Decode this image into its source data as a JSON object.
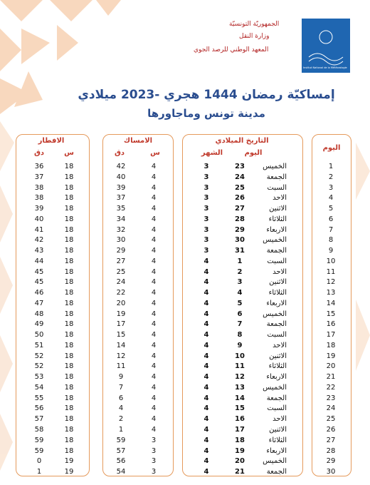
{
  "header": {
    "country": "الجمهوريّة التونسيّة",
    "ministry": "وزارة النقل",
    "institute": "المعهد الوطني للرصد الجوي",
    "logo_text": "Institut National de la Météorologie"
  },
  "title": "إمساكيّة رمضان 1444 هجري -2023 ميلادي",
  "subtitle": "مدينة تونس وماجاورها",
  "table": {
    "group_headers": {
      "day": "اليوم",
      "date": "التاريخ الميلادي",
      "imsak": "الامساك",
      "iftar": "الافطار"
    },
    "sub_headers": {
      "date_day": "اليوم",
      "date_month": "الشهر",
      "imsak_h": "س",
      "imsak_m": "دق",
      "iftar_h": "س",
      "iftar_m": "دق"
    },
    "rows": [
      [
        "1",
        "الخميس",
        "23",
        "3",
        "4",
        "42",
        "18",
        "36"
      ],
      [
        "2",
        "الجمعة",
        "24",
        "3",
        "4",
        "40",
        "18",
        "37"
      ],
      [
        "3",
        "السبت",
        "25",
        "3",
        "4",
        "39",
        "18",
        "38"
      ],
      [
        "4",
        "الاحد",
        "26",
        "3",
        "4",
        "37",
        "18",
        "38"
      ],
      [
        "5",
        "الاثنين",
        "27",
        "3",
        "4",
        "35",
        "18",
        "39"
      ],
      [
        "6",
        "الثلاثاء",
        "28",
        "3",
        "4",
        "34",
        "18",
        "40"
      ],
      [
        "7",
        "الاربعاء",
        "29",
        "3",
        "4",
        "32",
        "18",
        "41"
      ],
      [
        "8",
        "الخميس",
        "30",
        "3",
        "4",
        "30",
        "18",
        "42"
      ],
      [
        "9",
        "الجمعة",
        "31",
        "3",
        "4",
        "29",
        "18",
        "43"
      ],
      [
        "10",
        "السبت",
        "1",
        "4",
        "4",
        "27",
        "18",
        "44"
      ],
      [
        "11",
        "الاحد",
        "2",
        "4",
        "4",
        "25",
        "18",
        "45"
      ],
      [
        "12",
        "الاثنين",
        "3",
        "4",
        "4",
        "24",
        "18",
        "45"
      ],
      [
        "13",
        "الثلاثاء",
        "4",
        "4",
        "4",
        "22",
        "18",
        "46"
      ],
      [
        "14",
        "الاربعاء",
        "5",
        "4",
        "4",
        "20",
        "18",
        "47"
      ],
      [
        "15",
        "الخميس",
        "6",
        "4",
        "4",
        "19",
        "18",
        "48"
      ],
      [
        "16",
        "الجمعة",
        "7",
        "4",
        "4",
        "17",
        "18",
        "49"
      ],
      [
        "17",
        "السبت",
        "8",
        "4",
        "4",
        "15",
        "18",
        "50"
      ],
      [
        "18",
        "الاحد",
        "9",
        "4",
        "4",
        "14",
        "18",
        "51"
      ],
      [
        "19",
        "الاثنين",
        "10",
        "4",
        "4",
        "12",
        "18",
        "52"
      ],
      [
        "20",
        "الثلاثاء",
        "11",
        "4",
        "4",
        "11",
        "18",
        "52"
      ],
      [
        "21",
        "الاربعاء",
        "12",
        "4",
        "4",
        "9",
        "18",
        "53"
      ],
      [
        "22",
        "الخميس",
        "13",
        "4",
        "4",
        "7",
        "18",
        "54"
      ],
      [
        "23",
        "الجمعة",
        "14",
        "4",
        "4",
        "6",
        "18",
        "55"
      ],
      [
        "24",
        "السبت",
        "15",
        "4",
        "4",
        "4",
        "18",
        "56"
      ],
      [
        "25",
        "الاحد",
        "16",
        "4",
        "4",
        "2",
        "18",
        "57"
      ],
      [
        "26",
        "الاثنين",
        "17",
        "4",
        "4",
        "1",
        "18",
        "58"
      ],
      [
        "27",
        "الثلاثاء",
        "18",
        "4",
        "3",
        "59",
        "18",
        "59"
      ],
      [
        "28",
        "الاربعاء",
        "19",
        "4",
        "3",
        "57",
        "18",
        "59"
      ],
      [
        "29",
        "الخميس",
        "20",
        "4",
        "3",
        "56",
        "19",
        "0"
      ],
      [
        "30",
        "الجمعة",
        "21",
        "4",
        "3",
        "54",
        "19",
        "1"
      ]
    ]
  }
}
